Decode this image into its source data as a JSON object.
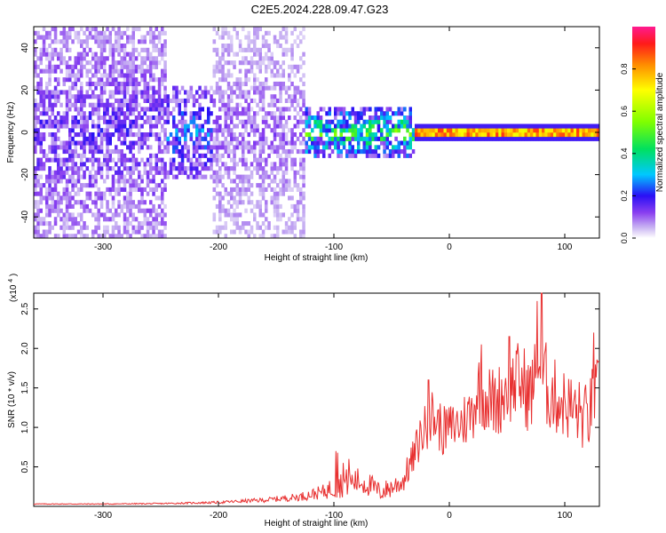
{
  "title": "C2E5.2024.228.09.47.G23",
  "chart_data": [
    {
      "type": "heatmap",
      "xlabel": "Height of straight line (km)",
      "ylabel": "Frequency (Hz)",
      "xlim": [
        -360,
        130
      ],
      "ylim": [
        -50,
        50
      ],
      "xticks": [
        -300,
        -200,
        -100,
        0,
        100
      ],
      "yticks": [
        -40,
        -20,
        0,
        20,
        40
      ],
      "colorbar": {
        "label": "Normalized spectral amplitude",
        "range": [
          0,
          1
        ],
        "ticks": [
          0.0,
          0.2,
          0.4,
          0.6,
          0.8
        ]
      },
      "regions": [
        {
          "x_range": [
            -360,
            -245
          ],
          "freq_spread": 50,
          "amplitude": 0.12
        },
        {
          "x_range": [
            -245,
            -205
          ],
          "freq_spread": 20,
          "amplitude": 0.2
        },
        {
          "x_range": [
            -205,
            -125
          ],
          "freq_spread": 50,
          "amplitude": 0.08
        },
        {
          "x_range": [
            -125,
            -30
          ],
          "freq_spread": 10,
          "amplitude": 0.35
        },
        {
          "x_range": [
            -30,
            130
          ],
          "freq_spread": 1,
          "amplitude": 0.9
        }
      ]
    },
    {
      "type": "line",
      "xlabel": "Height of straight line (km)",
      "ylabel": "SNR (10 * v/v)",
      "y_multiplier": "(x10",
      "y_multiplier_exp": "4",
      "y_multiplier_close": ")",
      "xlim": [
        -360,
        130
      ],
      "ylim": [
        0,
        27000
      ],
      "xticks": [
        -300,
        -200,
        -100,
        0,
        100
      ],
      "yticks": [
        5000,
        10000,
        15000,
        20000,
        25000
      ],
      "ytick_labels": [
        "0.5",
        "1.0",
        "1.5",
        "2.0",
        "2.5"
      ],
      "series": [
        {
          "color": "#e83030",
          "x": [
            -360,
            -300,
            -250,
            -200,
            -160,
            -130,
            -110,
            -100,
            -90,
            -80,
            -70,
            -60,
            -50,
            -40,
            -35,
            -30,
            -25,
            -20,
            -15,
            -10,
            -5,
            0,
            10,
            20,
            25,
            30,
            40,
            50,
            60,
            70,
            78,
            85,
            90,
            100,
            110,
            120,
            125,
            130
          ],
          "y": [
            300,
            300,
            350,
            500,
            800,
            1200,
            1800,
            2400,
            3000,
            3200,
            2800,
            1800,
            2400,
            3200,
            5000,
            6500,
            9000,
            10000,
            11500,
            10500,
            9500,
            10000,
            10500,
            12000,
            15000,
            14000,
            13000,
            15000,
            16000,
            14000,
            18000,
            15000,
            14000,
            13000,
            12000,
            11000,
            14000,
            15000
          ],
          "jitter": [
            50,
            60,
            80,
            150,
            300,
            500,
            900,
            1500,
            1800,
            1800,
            1600,
            1200,
            1400,
            1500,
            2000,
            2500,
            3000,
            3200,
            3500,
            3500,
            3200,
            3000,
            3500,
            4000,
            4500,
            4500,
            4500,
            5000,
            5000,
            5000,
            5500,
            5500,
            5000,
            4500,
            4500,
            4500,
            4500,
            4000
          ],
          "spikes": [
            {
              "x": -98,
              "y": 7000
            },
            {
              "x": -97,
              "y": 6800
            },
            {
              "x": -92,
              "y": 5500
            },
            {
              "x": -87,
              "y": 6000
            },
            {
              "x": -18,
              "y": 16000
            },
            {
              "x": 28,
              "y": 20500
            },
            {
              "x": 52,
              "y": 21500
            },
            {
              "x": 65,
              "y": 20000
            },
            {
              "x": 76,
              "y": 26000
            },
            {
              "x": 80,
              "y": 27000
            },
            {
              "x": 125,
              "y": 22000
            }
          ]
        }
      ]
    }
  ]
}
